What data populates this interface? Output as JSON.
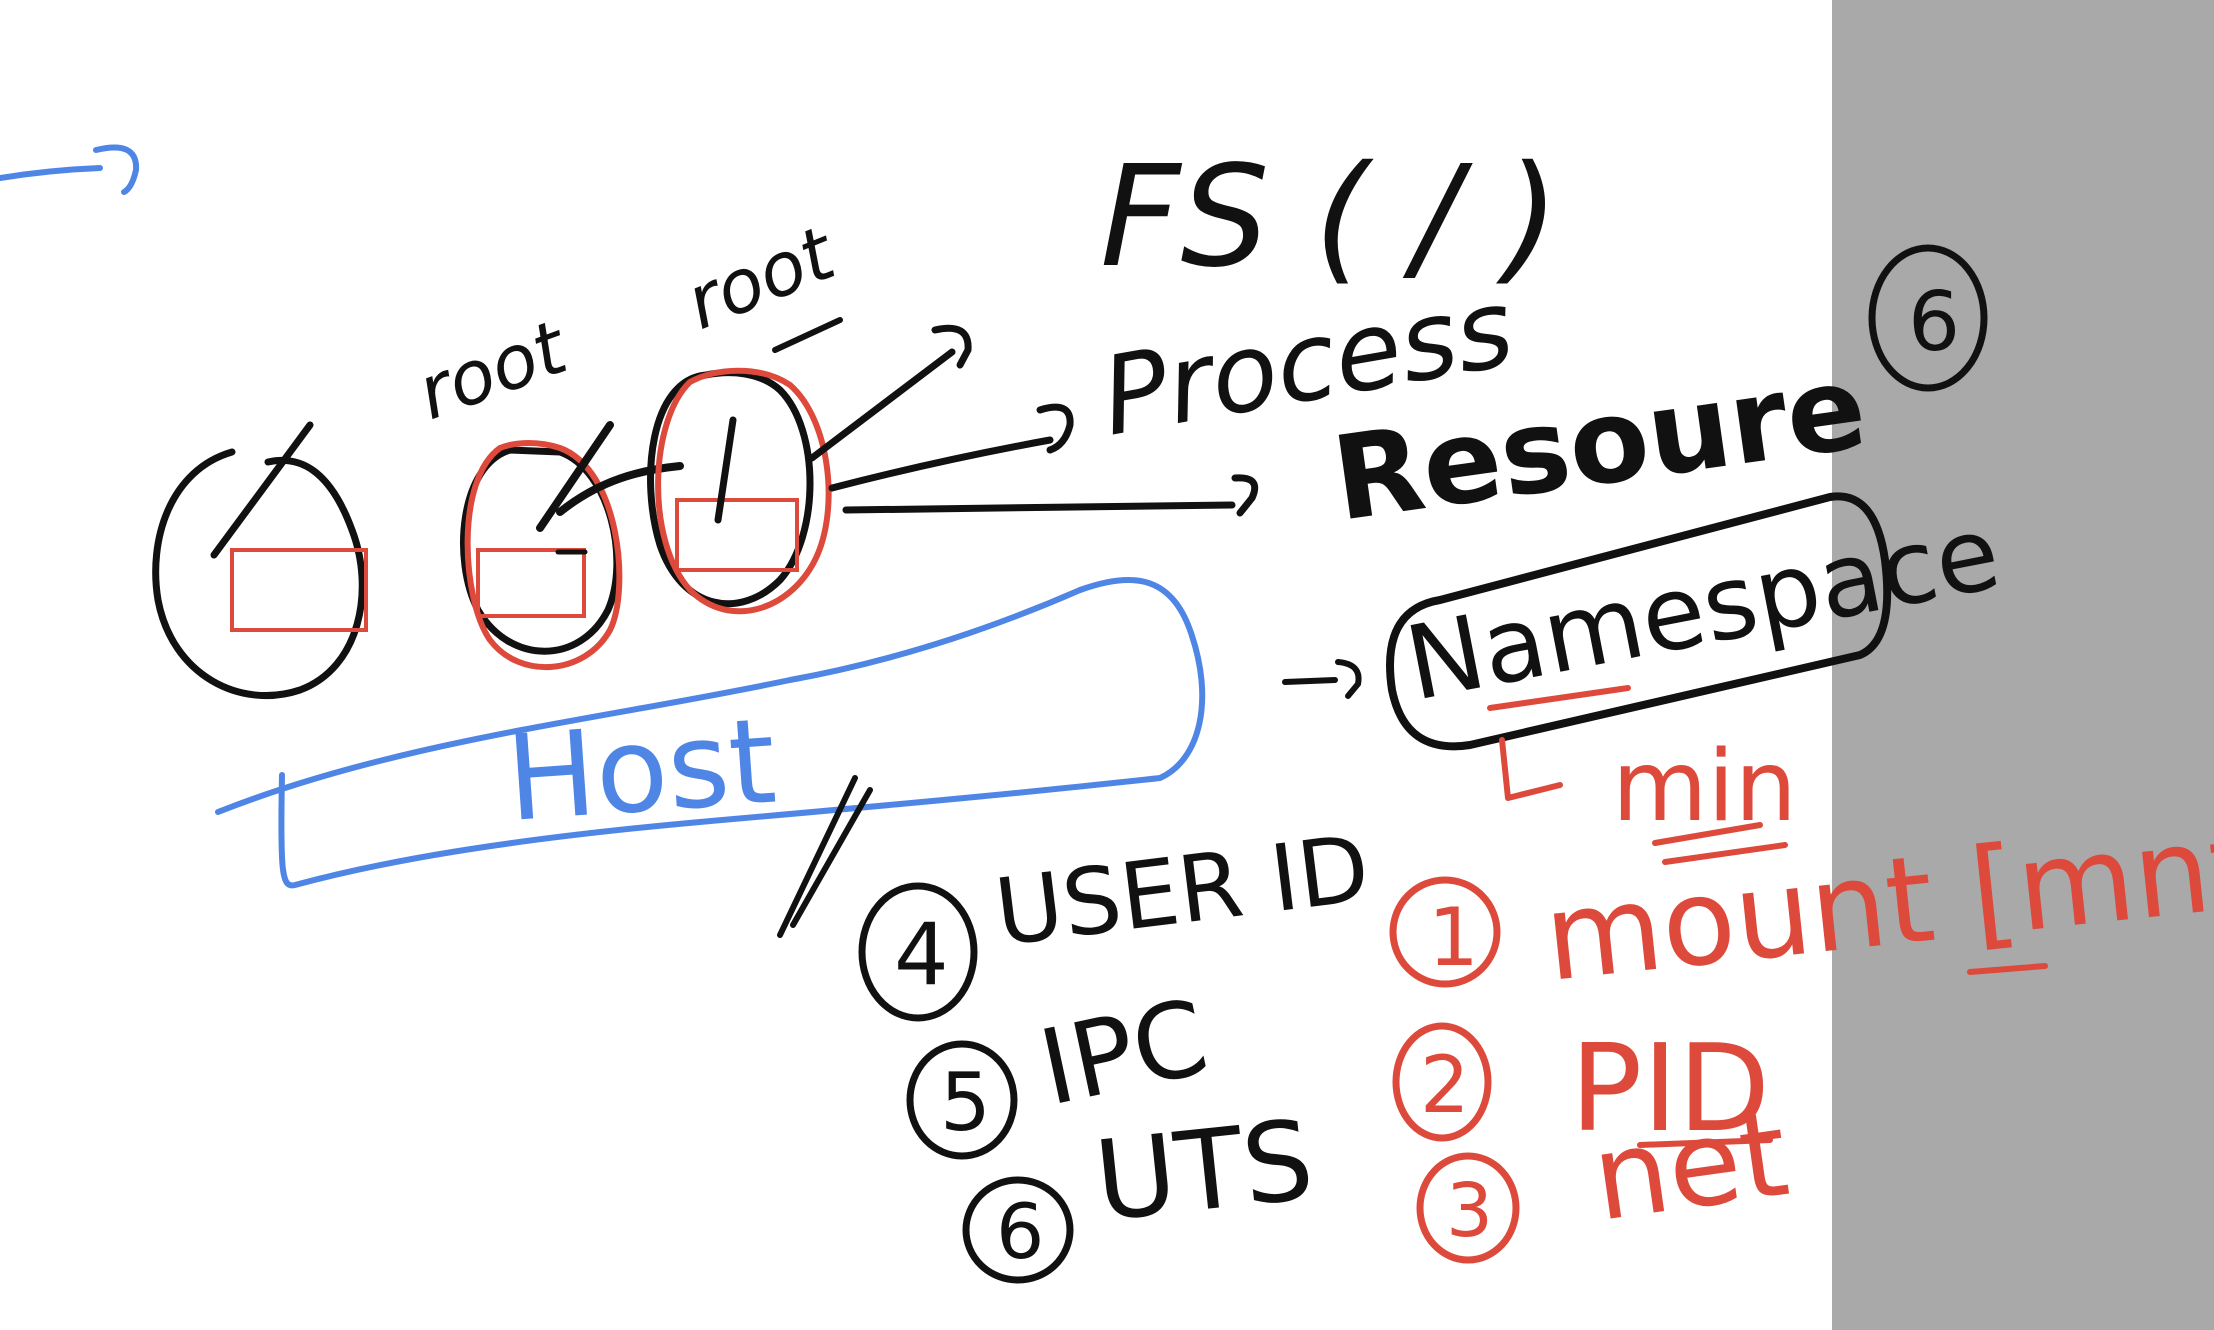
{
  "colors": {
    "ink_black": "#111111",
    "ink_red": "#dd4a3c",
    "ink_blue": "#4f86e6",
    "side_panel": "#a9a9a9",
    "background": "#ffffff"
  },
  "labels": {
    "root_left": "root",
    "root_right": "root",
    "fs": "FS ( / )",
    "process": "Process",
    "resource": "Resoure",
    "namespace": "Namespace",
    "host": "Host",
    "circled_six": "6",
    "min": "min"
  },
  "namespace_list": [
    {
      "num": "1",
      "name": "mount [mnt]"
    },
    {
      "num": "2",
      "name": "PID"
    },
    {
      "num": "3",
      "name": "net"
    },
    {
      "num": "4",
      "name": "USER ID"
    },
    {
      "num": "5",
      "name": "IPC"
    },
    {
      "num": "6",
      "name": "UTS"
    }
  ]
}
